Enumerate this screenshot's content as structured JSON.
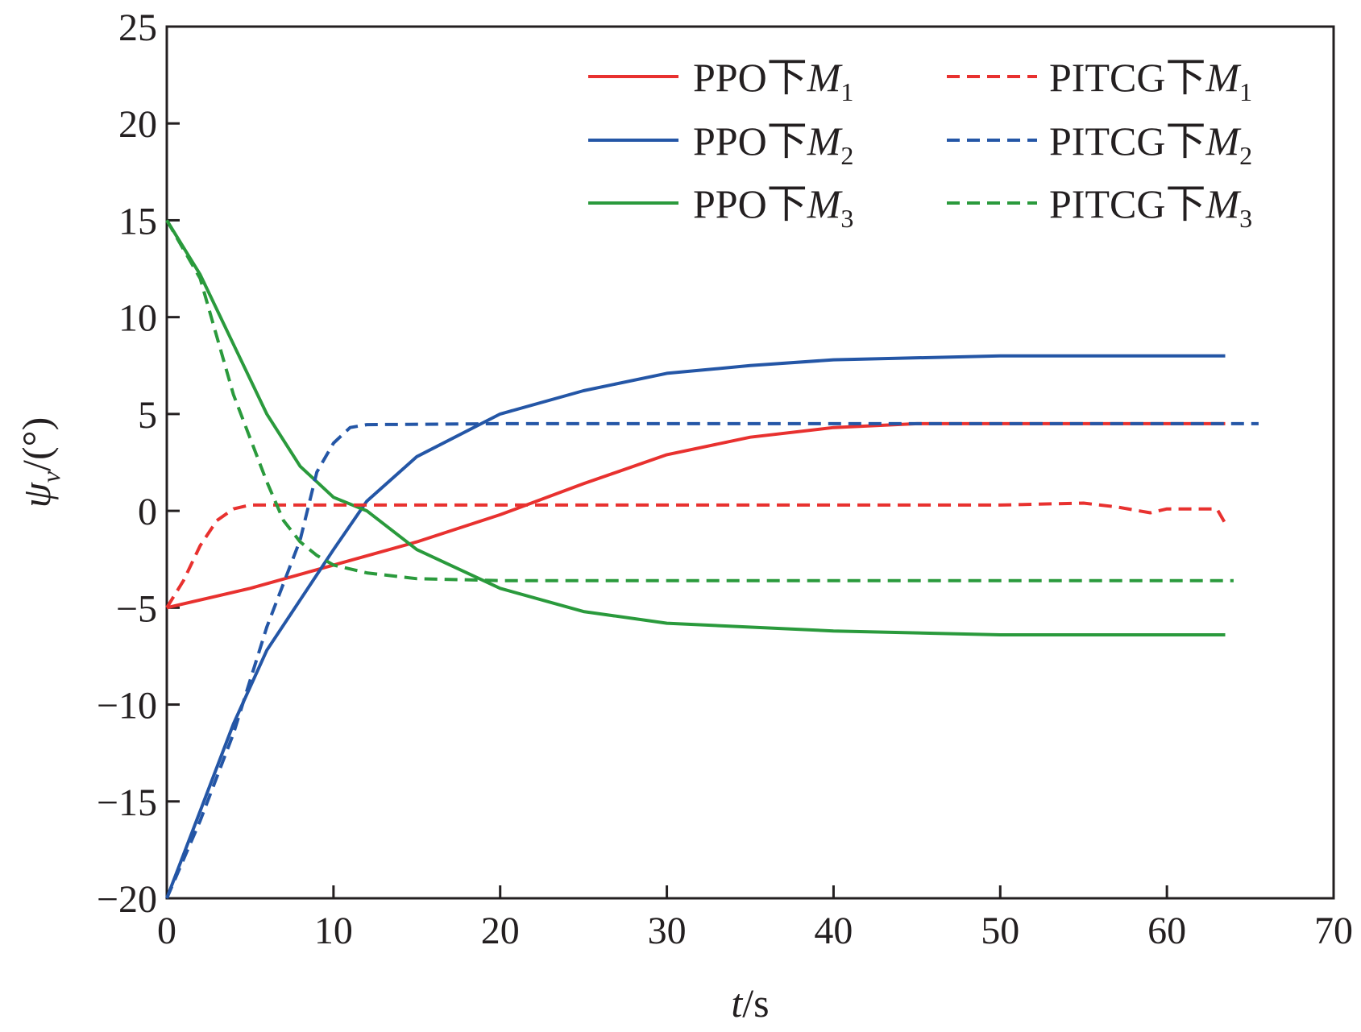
{
  "chart_data": {
    "type": "line",
    "xlabel": {
      "var": "t",
      "unit": "/s"
    },
    "ylabel": {
      "var": "ψ",
      "sub": "v",
      "unit": "/(°)"
    },
    "xlim": [
      0,
      70
    ],
    "ylim": [
      -20,
      25
    ],
    "x_ticks": [
      0,
      10,
      20,
      30,
      40,
      50,
      60,
      70
    ],
    "x_tick_labels": [
      "0",
      "10",
      "20",
      "30",
      "40",
      "50",
      "60",
      "70"
    ],
    "y_ticks": [
      -20,
      -15,
      -10,
      -5,
      0,
      5,
      10,
      15,
      20,
      25
    ],
    "y_tick_labels": [
      "−20",
      "−15",
      "−10",
      "−5",
      "0",
      "5",
      "10",
      "15",
      "20",
      "25"
    ],
    "grid": false,
    "legend_position": "top-right",
    "series": [
      {
        "name": "PPO下M1",
        "label_prefix": "PPO下",
        "label_var": "M",
        "label_sub": "1",
        "color": "#e8312f",
        "dash": "solid",
        "points": [
          [
            0,
            -5
          ],
          [
            5,
            -4
          ],
          [
            10,
            -2.8
          ],
          [
            15,
            -1.6
          ],
          [
            20,
            -0.2
          ],
          [
            25,
            1.4
          ],
          [
            30,
            2.9
          ],
          [
            35,
            3.8
          ],
          [
            40,
            4.3
          ],
          [
            45,
            4.5
          ],
          [
            50,
            4.5
          ],
          [
            55,
            4.5
          ],
          [
            63.5,
            4.5
          ]
        ]
      },
      {
        "name": "PPO下M2",
        "label_prefix": "PPO下",
        "label_var": "M",
        "label_sub": "2",
        "color": "#2456a6",
        "dash": "solid",
        "points": [
          [
            0,
            -20
          ],
          [
            2,
            -15.5
          ],
          [
            4,
            -11
          ],
          [
            6,
            -7.2
          ],
          [
            8,
            -4.6
          ],
          [
            10,
            -2
          ],
          [
            12,
            0.5
          ],
          [
            15,
            2.8
          ],
          [
            20,
            5
          ],
          [
            25,
            6.2
          ],
          [
            30,
            7.1
          ],
          [
            35,
            7.5
          ],
          [
            40,
            7.8
          ],
          [
            50,
            8
          ],
          [
            63.5,
            8
          ]
        ]
      },
      {
        "name": "PPO下M3",
        "label_prefix": "PPO下",
        "label_var": "M",
        "label_sub": "3",
        "color": "#2a9a3c",
        "dash": "solid",
        "points": [
          [
            0,
            15
          ],
          [
            2,
            12.2
          ],
          [
            4,
            8.6
          ],
          [
            6,
            5
          ],
          [
            8,
            2.3
          ],
          [
            10,
            0.7
          ],
          [
            12,
            0
          ],
          [
            15,
            -2
          ],
          [
            20,
            -4
          ],
          [
            25,
            -5.2
          ],
          [
            30,
            -5.8
          ],
          [
            40,
            -6.2
          ],
          [
            50,
            -6.4
          ],
          [
            63.5,
            -6.4
          ]
        ]
      },
      {
        "name": "PITCG下M1",
        "label_prefix": "PITCG下",
        "label_var": "M",
        "label_sub": "1",
        "color": "#e8312f",
        "dash": "dashed",
        "points": [
          [
            0,
            -5
          ],
          [
            1,
            -3.6
          ],
          [
            2,
            -1.8
          ],
          [
            3,
            -0.5
          ],
          [
            4,
            0.1
          ],
          [
            5,
            0.3
          ],
          [
            10,
            0.3
          ],
          [
            20,
            0.3
          ],
          [
            30,
            0.3
          ],
          [
            40,
            0.3
          ],
          [
            50,
            0.3
          ],
          [
            55,
            0.4
          ],
          [
            57,
            0.2
          ],
          [
            59,
            -0.1
          ],
          [
            60,
            0.1
          ],
          [
            63,
            0.1
          ],
          [
            63.6,
            -0.8
          ]
        ]
      },
      {
        "name": "PITCG下M2",
        "label_prefix": "PITCG下",
        "label_var": "M",
        "label_sub": "2",
        "color": "#2456a6",
        "dash": "dashed",
        "points": [
          [
            0,
            -20
          ],
          [
            2,
            -16
          ],
          [
            4,
            -11.5
          ],
          [
            6,
            -6
          ],
          [
            8,
            -1.5
          ],
          [
            9,
            2
          ],
          [
            10,
            3.5
          ],
          [
            11,
            4.3
          ],
          [
            12,
            4.45
          ],
          [
            20,
            4.5
          ],
          [
            30,
            4.5
          ],
          [
            40,
            4.5
          ],
          [
            50,
            4.5
          ],
          [
            65.5,
            4.5
          ]
        ]
      },
      {
        "name": "PITCG下M3",
        "label_prefix": "PITCG下",
        "label_var": "M",
        "label_sub": "3",
        "color": "#2a9a3c",
        "dash": "dashed",
        "points": [
          [
            0,
            15
          ],
          [
            2,
            12
          ],
          [
            4,
            6
          ],
          [
            6,
            1.5
          ],
          [
            7,
            -0.5
          ],
          [
            8,
            -1.6
          ],
          [
            9,
            -2.3
          ],
          [
            10,
            -2.8
          ],
          [
            12,
            -3.2
          ],
          [
            15,
            -3.5
          ],
          [
            20,
            -3.6
          ],
          [
            30,
            -3.6
          ],
          [
            40,
            -3.6
          ],
          [
            50,
            -3.6
          ],
          [
            64,
            -3.6
          ]
        ]
      }
    ]
  }
}
